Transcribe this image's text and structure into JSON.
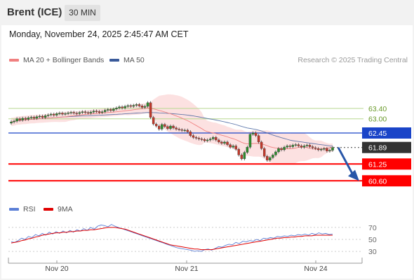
{
  "header": {
    "title": "Brent (ICE)",
    "timeframe": "30 MIN"
  },
  "datetime": "Monday, November 24, 2025 2:45:47 AM CET",
  "legend": {
    "ma20": {
      "label": "MA 20 + Bollinger Bands",
      "color": "#f08080"
    },
    "ma50": {
      "label": "MA 50",
      "color": "#3a5a9a"
    }
  },
  "credit": "Research © 2025 Trading Central",
  "rsi_legend": {
    "rsi": {
      "label": "RSI",
      "color": "#5b7fd6"
    },
    "ma9": {
      "label": "9MA",
      "color": "#e00000"
    }
  },
  "chart_data": [
    {
      "type": "candlestick",
      "name": "price",
      "x_ticks": [
        "Nov 20",
        "Nov 21",
        "Nov 24"
      ],
      "levels": [
        {
          "value": 63.4,
          "label": "63.40",
          "kind": "resistance"
        },
        {
          "value": 63.0,
          "label": "63.00",
          "kind": "resistance"
        },
        {
          "value": 62.45,
          "label": "62.45",
          "kind": "pivot"
        },
        {
          "value": 61.89,
          "label": "61.89",
          "kind": "last"
        },
        {
          "value": 61.25,
          "label": "61.25",
          "kind": "support"
        },
        {
          "value": 60.6,
          "label": "60.60",
          "kind": "support"
        }
      ],
      "ylim": [
        60.5,
        64.4
      ],
      "closes": [
        62.88,
        62.91,
        63.0,
        62.95,
        63.02,
        62.98,
        63.04,
        63.06,
        63.02,
        63.08,
        63.1,
        63.05,
        63.12,
        63.15,
        63.18,
        63.14,
        63.2,
        63.22,
        63.18,
        63.2,
        63.23,
        63.25,
        63.22,
        63.2,
        63.24,
        63.27,
        63.24,
        63.22,
        63.26,
        63.3,
        63.28,
        63.24,
        63.27,
        63.33,
        63.36,
        63.32,
        63.38,
        63.42,
        63.46,
        63.42,
        63.48,
        63.51,
        63.48,
        63.52,
        63.55,
        63.5,
        63.44,
        63.48,
        63.62,
        63.05,
        62.8,
        62.72,
        62.6,
        62.78,
        62.7,
        62.62,
        62.72,
        62.65,
        62.6,
        62.58,
        62.55,
        62.56,
        62.5,
        62.35,
        62.28,
        62.25,
        62.22,
        62.2,
        62.15,
        62.18,
        62.22,
        62.28,
        62.18,
        62.1,
        62.05,
        62.1,
        62.0,
        61.9,
        61.95,
        61.82,
        61.6,
        61.45,
        61.7,
        61.9,
        62.4,
        62.45,
        62.35,
        62.1,
        61.85,
        61.55,
        61.4,
        61.5,
        61.6,
        61.72,
        61.85,
        61.8,
        61.9,
        61.95,
        61.92,
        61.98,
        62.0,
        61.95,
        61.9,
        61.95,
        61.98,
        61.92,
        61.88,
        61.85,
        61.8,
        61.82,
        61.85,
        61.75,
        61.78,
        61.89
      ]
    },
    {
      "type": "line",
      "name": "oscillator",
      "yticks": [
        70,
        50,
        30
      ],
      "ylim": [
        15,
        85
      ],
      "series": [
        {
          "name": "RSI",
          "values": [
            46,
            45,
            48,
            52,
            50,
            55,
            53,
            58,
            56,
            60,
            57,
            62,
            59,
            63,
            60,
            64,
            61,
            65,
            62,
            66,
            64,
            68,
            65,
            70,
            67,
            72,
            74,
            73,
            71,
            75,
            72,
            70,
            68,
            66,
            64,
            62,
            60,
            58,
            56,
            54,
            52,
            50,
            48,
            46,
            44,
            42,
            40,
            38,
            36,
            35,
            34,
            33,
            32,
            30,
            31,
            30,
            33,
            34,
            32,
            35,
            38,
            37,
            40,
            42,
            41,
            45,
            43,
            47,
            46,
            48,
            47,
            50,
            48,
            52,
            51,
            53,
            52,
            55,
            54,
            56,
            55,
            57,
            56,
            58,
            57,
            59,
            57,
            60,
            58,
            61,
            59,
            60,
            58,
            59
          ]
        },
        {
          "name": "9MA",
          "values": [
            44,
            45,
            46,
            48,
            49,
            51,
            52,
            54,
            55,
            57,
            58,
            59,
            60,
            61,
            61,
            62,
            62,
            63,
            63,
            64,
            64,
            65,
            65,
            66,
            66,
            67,
            68,
            69,
            70,
            70,
            70,
            69,
            68,
            67,
            65,
            63,
            61,
            59,
            57,
            55,
            53,
            51,
            49,
            47,
            45,
            43,
            41,
            40,
            39,
            38,
            37,
            36,
            35,
            34,
            34,
            33,
            33,
            33,
            33,
            34,
            35,
            36,
            37,
            38,
            39,
            40,
            41,
            42,
            43,
            44,
            45,
            46,
            47,
            48,
            49,
            50,
            51,
            52,
            52,
            53,
            53,
            54,
            54,
            55,
            55,
            56,
            56,
            56,
            57,
            57,
            57,
            57,
            57,
            57
          ]
        }
      ]
    }
  ]
}
